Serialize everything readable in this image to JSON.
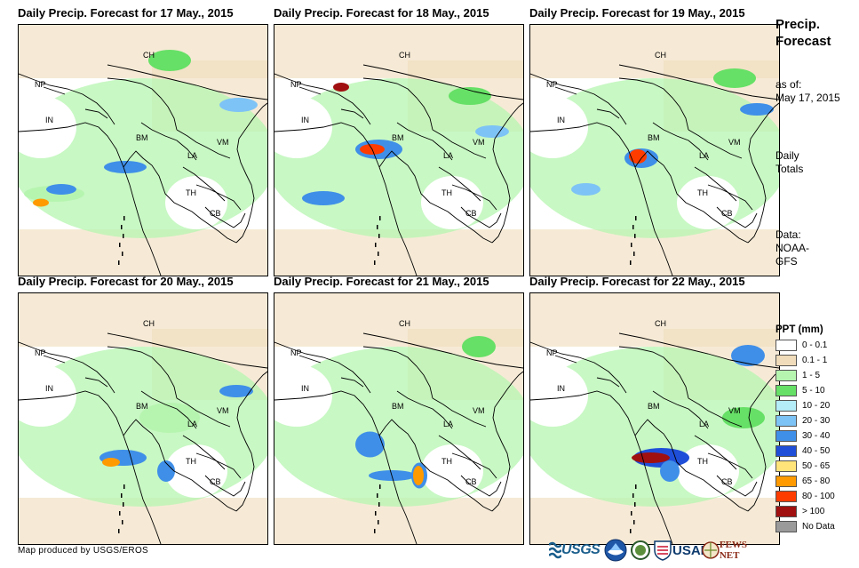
{
  "panels": [
    {
      "title": "Daily Precip. Forecast for 17 May., 2015"
    },
    {
      "title": "Daily Precip. Forecast for 18 May., 2015"
    },
    {
      "title": "Daily Precip. Forecast for 19 May., 2015"
    },
    {
      "title": "Daily Precip. Forecast for 20 May., 2015"
    },
    {
      "title": "Daily Precip. Forecast for 21 May., 2015"
    },
    {
      "title": "Daily Precip. Forecast for 22 May., 2015"
    }
  ],
  "country_labels": {
    "ch": "CH",
    "np": "NP",
    "in": "IN",
    "bm": "BM",
    "la": "LA",
    "vm": "VM",
    "th": "TH",
    "cb": "CB"
  },
  "sidebar": {
    "title_line1": "Precip.",
    "title_line2": "Forecast",
    "asof_line1": "as of:",
    "asof_line2": "May 17, 2015",
    "daily_line1": "Daily",
    "daily_line2": "Totals",
    "data_line1": "Data:",
    "data_line2": "NOAA-",
    "data_line3": "GFS"
  },
  "legend": {
    "title": "PPT (mm)",
    "items": [
      {
        "label": "0 - 0.1",
        "color": "#ffffff"
      },
      {
        "label": "0.1 - 1",
        "color": "#f0dcba"
      },
      {
        "label": "1 - 5",
        "color": "#b6f5b0"
      },
      {
        "label": "5 - 10",
        "color": "#66e066"
      },
      {
        "label": "10 - 20",
        "color": "#b4ecf8"
      },
      {
        "label": "20 - 30",
        "color": "#7ec3f5"
      },
      {
        "label": "30 - 40",
        "color": "#3f8fe8"
      },
      {
        "label": "40 - 50",
        "color": "#1f4fd8"
      },
      {
        "label": "50 - 65",
        "color": "#ffe47a"
      },
      {
        "label": "65 - 80",
        "color": "#ff9a00"
      },
      {
        "label": "80 - 100",
        "color": "#ff3c00"
      },
      {
        "label": "> 100",
        "color": "#a01010"
      },
      {
        "label": "No Data",
        "color": "#9a9a9a"
      }
    ]
  },
  "footer": {
    "credit": "Map produced by USGS/EROS"
  },
  "logos": {
    "usgs": "USGS",
    "usaid": "USAID",
    "fews": "FEWS NET"
  }
}
